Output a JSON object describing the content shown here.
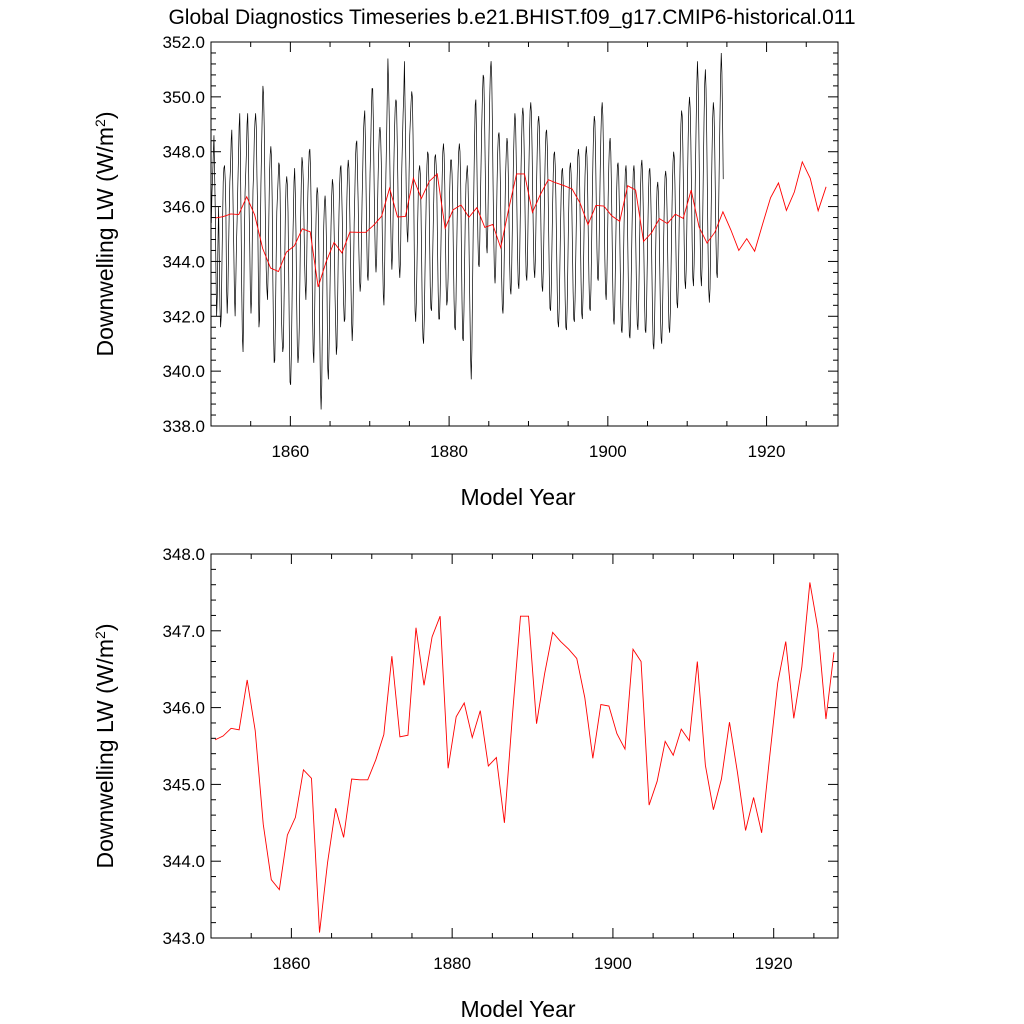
{
  "figure_title": "Global Diagnostics Timeseries b.e21.BHIST.f09_g17.CMIP6-historical.011",
  "colors": {
    "monthly_line": "#000000",
    "annual_line": "#ff0000",
    "axis": "#000000"
  },
  "chart_data": [
    {
      "type": "line",
      "title": "Global Diagnostics Timeseries b.e21.BHIST.f09_g17.CMIP6-historical.011",
      "xlabel": "Model Year",
      "ylabel": "Downwelling LW (W/m",
      "ylabel_sup": "2",
      "ylabel_close": ")",
      "xlim": [
        1850,
        1929
      ],
      "ylim": [
        338,
        352
      ],
      "xticks": [
        1860,
        1880,
        1900,
        1920
      ],
      "yticks": [
        "338.0",
        "340.0",
        "342.0",
        "344.0",
        "346.0",
        "348.0",
        "350.0",
        "352.0"
      ],
      "series": [
        {
          "kind": "monthly",
          "x_start": 1850.04,
          "x_step": 0.0833333,
          "values": [
            345.4,
            346.5,
            347.1,
            347.9,
            348.6,
            347.2,
            345.8,
            343.6,
            342.0,
            342.7,
            344.6,
            346.0,
            344.2,
            342.4,
            341.6,
            342.0,
            343.8,
            345.4,
            346.9,
            347.4,
            347.5,
            347.0,
            345.9,
            343.1,
            342.1,
            342.8,
            344.3,
            345.7,
            346.9,
            347.4,
            348.4,
            348.8,
            347.5,
            345.9,
            344.4,
            342.7,
            342.0,
            343.2,
            344.6,
            345.5,
            346.7,
            347.7,
            348.9,
            349.4,
            347.8,
            345.4,
            342.9,
            341.2,
            340.7,
            342.3,
            344.9,
            346.5,
            347.2,
            347.9,
            349.0,
            349.4,
            348.2,
            346.1,
            344.7,
            342.9,
            342.1,
            342.7,
            344.9,
            346.6,
            347.3,
            348.5,
            349.1,
            349.4,
            348.9,
            347.1,
            345.9,
            343.6,
            341.6,
            341.9,
            344.7,
            346.8,
            348.1,
            349.4,
            350.4,
            350.1,
            348.9,
            346.8,
            345.1,
            343.7,
            343.0,
            342.6,
            343.7,
            345.6,
            347.2,
            347.9,
            348.2,
            347.8,
            346.3,
            343.4,
            341.5,
            340.3,
            340.4,
            342.0,
            344.0,
            345.8,
            346.4,
            347.0,
            347.6,
            347.5,
            346.5,
            344.4,
            342.0,
            341.2,
            340.7,
            340.9,
            342.6,
            344.0,
            345.8,
            346.8,
            347.1,
            346.8,
            345.8,
            343.6,
            341.3,
            339.6,
            339.5,
            340.6,
            342.4,
            344.5,
            345.6,
            346.9,
            347.4,
            346.5,
            345.1,
            342.6,
            340.9,
            340.3,
            340.6,
            341.6,
            343.4,
            345.5,
            346.8,
            347.8,
            347.6,
            347.0,
            345.6,
            344.0,
            343.1,
            342.6,
            343.6,
            345.3,
            346.5,
            347.3,
            348.0,
            348.1,
            347.4,
            345.9,
            344.6,
            342.2,
            340.7,
            340.3,
            341.7,
            343.5,
            345.1,
            346.3,
            346.7,
            346.5,
            345.5,
            343.6,
            341.3,
            339.4,
            338.6,
            339.5,
            341.8,
            343.9,
            345.3,
            346.1,
            346.4,
            346.0,
            344.8,
            342.7,
            340.1,
            339.7,
            340.8,
            342.3,
            343.9,
            345.3,
            346.4,
            347.0,
            346.8,
            346.0,
            344.7,
            342.8,
            341.7,
            340.6,
            340.9,
            342.6,
            344.3,
            345.7,
            346.8,
            347.4,
            347.5,
            346.7,
            345.6,
            343.7,
            342.5,
            341.8,
            341.9,
            343.4,
            345.0,
            346.3,
            347.3,
            347.7,
            347.4,
            346.3,
            344.8,
            343.3,
            341.9,
            341.1,
            341.7,
            343.5,
            345.4,
            346.5,
            347.8,
            348.3,
            348.4,
            347.3,
            346.2,
            344.5,
            343.4,
            342.9,
            343.2,
            344.8,
            346.3,
            347.4,
            348.7,
            349.2,
            349.5,
            348.4,
            346.6,
            344.8,
            343.5,
            343.3,
            344.1,
            345.7,
            347.2,
            348.2,
            349.5,
            350.3,
            350.3,
            349.1,
            347.1,
            345.4,
            344.1,
            343.6,
            344.1,
            345.6,
            346.9,
            347.9,
            348.7,
            348.9,
            348.6,
            347.6,
            345.9,
            344.1,
            342.8,
            342.4,
            343.6,
            345.6,
            347.2,
            348.5,
            350.0,
            351.4,
            350.5,
            349.3,
            347.5,
            345.8,
            344.4,
            343.7,
            344.3,
            345.9,
            347.5,
            348.8,
            349.6,
            349.9,
            349.8,
            348.5,
            347.0,
            345.1,
            343.8,
            343.4,
            344.0,
            345.9,
            347.4,
            348.4,
            349.4,
            350.1,
            351.3,
            349.6,
            347.8,
            346.1,
            345.1,
            344.7,
            345.6,
            347.2,
            348.6,
            349.2,
            349.8,
            350.2,
            350.0,
            348.6,
            346.6,
            344.0,
            342.2,
            341.8,
            342.5,
            343.9,
            345.4,
            346.6,
            347.3,
            347.5,
            347.2,
            345.9,
            344.1,
            342.1,
            341.2,
            341.0,
            341.9,
            343.5,
            345.0,
            346.4,
            347.5,
            348.0,
            347.9,
            346.8,
            344.9,
            343.1,
            342.3,
            342.2,
            343.1,
            344.6,
            345.9,
            347.0,
            347.8,
            347.9,
            347.5,
            346.5,
            344.6,
            342.9,
            341.9,
            341.9,
            342.8,
            344.3,
            345.8,
            347.0,
            348.0,
            348.3,
            347.9,
            346.8,
            344.9,
            343.1,
            342.4,
            342.6,
            343.4,
            345.0,
            346.2,
            347.1,
            347.7,
            347.7,
            347.2,
            346.1,
            344.2,
            342.6,
            341.6,
            341.5,
            342.6,
            344.4,
            345.9,
            347.2,
            348.0,
            348.3,
            348.0,
            346.9,
            344.7,
            342.6,
            341.2,
            341.1,
            342.2,
            344.0,
            345.6,
            346.8,
            347.2,
            347.5,
            347.0,
            345.8,
            343.9,
            342.2,
            340.5,
            339.7,
            340.8,
            343.1,
            345.2,
            346.8,
            348.4,
            349.7,
            349.9,
            348.6,
            346.7,
            344.9,
            343.9,
            343.8,
            344.8,
            346.4,
            347.8,
            349.1,
            350.1,
            350.8,
            350.7,
            349.5,
            347.7,
            345.9,
            344.6,
            344.3,
            345.2,
            346.9,
            348.6,
            350.0,
            351.0,
            351.3,
            350.7,
            349.0,
            346.8,
            344.9,
            343.6,
            343.2,
            343.8,
            345.2,
            346.8,
            348.0,
            348.6,
            348.7,
            348.2,
            346.9,
            345.1,
            343.4,
            342.3,
            342.1,
            342.8,
            344.3,
            345.9,
            347.2,
            348.0,
            348.5,
            348.3,
            347.2,
            345.7,
            344.0,
            343.0,
            342.8,
            343.5,
            345.0,
            346.6,
            347.9,
            348.9,
            349.4,
            349.1,
            347.8,
            346.0,
            344.3,
            343.2,
            343.0,
            343.8,
            345.4,
            347.0,
            348.3,
            349.3,
            349.6,
            349.3,
            348.1,
            346.4,
            344.7,
            343.5,
            343.3,
            344.0,
            345.6,
            347.2,
            348.5,
            349.5,
            349.8,
            349.4,
            348.1,
            346.4,
            344.8,
            343.7,
            343.4,
            344.1,
            345.6,
            347.1,
            348.3,
            349.1,
            349.3,
            348.9,
            347.6,
            345.9,
            344.2,
            343.1,
            342.9,
            343.7,
            345.2,
            346.8,
            348.0,
            348.7,
            348.8,
            348.2,
            346.9,
            345.2,
            343.5,
            342.3,
            342.2,
            343.0,
            344.5,
            346.0,
            347.2,
            347.9,
            348.0,
            347.5,
            346.3,
            344.6,
            342.9,
            341.8,
            341.6,
            342.3,
            343.8,
            345.3,
            346.5,
            347.3,
            347.4,
            346.9,
            345.8,
            344.1,
            342.6,
            341.6,
            341.5,
            342.3,
            343.8,
            345.4,
            346.6,
            347.4,
            347.6,
            347.2,
            346.1,
            344.5,
            342.9,
            341.9,
            341.8,
            342.6,
            344.1,
            345.6,
            346.9,
            347.8,
            348.1,
            347.8,
            346.7,
            345.0,
            343.3,
            342.1,
            341.9,
            342.7,
            344.2,
            345.8,
            347.1,
            347.9,
            348.2,
            347.8,
            346.6,
            344.9,
            343.3,
            342.3,
            342.2,
            343.0,
            344.6,
            346.3,
            347.7,
            348.8,
            349.3,
            349.1,
            347.9,
            346.2,
            344.5,
            343.4,
            343.3,
            344.1,
            345.7,
            347.3,
            348.6,
            349.5,
            349.8,
            349.3,
            347.9,
            346.0,
            344.1,
            342.9,
            342.6,
            343.3,
            344.7,
            346.3,
            347.5,
            348.3,
            348.5,
            348.0,
            346.7,
            344.9,
            343.1,
            341.9,
            341.7,
            342.4,
            343.9,
            345.4,
            346.7,
            347.5,
            347.6,
            347.1,
            345.9,
            344.2,
            342.6,
            341.5,
            341.4,
            342.2,
            343.7,
            345.3,
            346.5,
            347.3,
            347.5,
            347.0,
            345.8,
            344.1,
            342.4,
            341.3,
            341.2,
            342.0,
            343.6,
            345.1,
            346.4,
            347.3,
            347.5,
            347.1,
            345.9,
            344.3,
            342.7,
            341.7,
            341.5,
            342.3,
            343.8,
            345.4,
            346.7,
            347.5,
            347.7,
            347.2,
            346.0,
            344.3,
            342.6,
            341.5,
            341.4,
            342.2,
            343.7,
            345.2,
            346.5,
            347.3,
            347.4,
            346.9,
            345.7,
            343.9,
            342.2,
            341.0,
            340.8,
            341.5,
            343.0,
            344.6,
            345.9,
            346.7,
            346.9,
            346.5,
            345.4,
            343.8,
            342.2,
            341.2,
            341.0,
            341.8,
            343.3,
            344.9,
            346.2,
            347.1,
            347.3,
            347.0,
            345.9,
            344.3,
            342.7,
            341.6,
            341.4,
            342.1,
            343.6,
            345.2,
            346.6,
            347.6,
            348.0,
            347.8,
            346.8,
            345.2,
            343.6,
            342.5,
            342.3,
            343.1,
            344.7,
            346.4,
            347.9,
            349.0,
            349.5,
            349.3,
            348.1,
            346.4,
            344.6,
            343.3,
            343.0,
            343.7,
            345.3,
            347.0,
            348.5,
            349.6,
            350.0,
            349.6,
            348.4,
            346.6,
            344.7,
            343.4,
            343.1,
            343.9,
            345.6,
            347.4,
            349.0,
            350.4,
            351.3,
            350.6,
            349.0,
            347.0,
            345.0,
            343.5,
            343.1,
            343.8,
            345.6,
            347.5,
            349.2,
            350.5,
            351.0,
            350.3,
            348.7,
            346.6,
            344.5,
            343.0,
            342.5,
            343.0,
            344.6,
            346.3,
            347.9,
            349.2,
            349.8,
            349.5,
            348.4,
            346.6,
            344.8,
            343.6,
            343.4,
            344.2,
            345.8,
            347.6,
            349.2,
            350.7,
            351.6,
            350.9,
            349.2,
            347.0
          ]
        },
        {
          "kind": "annual",
          "name": "",
          "x_start": 1850.5,
          "x_step": 1,
          "values": [
            345.58,
            345.63,
            345.73,
            345.71,
            346.36,
            345.7,
            344.48,
            343.76,
            343.63,
            344.34,
            344.57,
            345.19,
            345.08,
            343.07,
            343.98,
            344.69,
            344.31,
            345.07,
            345.06,
            345.06,
            345.32,
            345.65,
            346.67,
            345.62,
            345.64,
            347.04,
            346.29,
            346.92,
            347.19,
            345.21,
            345.88,
            346.06,
            345.61,
            345.96,
            345.24,
            345.35,
            344.5,
            345.9,
            347.19,
            347.19,
            345.79,
            346.44,
            346.98,
            346.86,
            346.76,
            346.64,
            346.13,
            345.34,
            346.04,
            346.02,
            345.66,
            345.46,
            346.76,
            346.6,
            344.73,
            345.04,
            345.56,
            345.38,
            345.72,
            345.57,
            346.6,
            345.25,
            344.67,
            345.07,
            345.81,
            345.15,
            344.4,
            344.83,
            344.37,
            345.36,
            346.32,
            346.86,
            345.86,
            346.53,
            347.63,
            347.03,
            345.85,
            346.72
          ]
        }
      ]
    },
    {
      "type": "line",
      "xlabel": "Model Year",
      "ylabel": "Downwelling LW (W/m",
      "ylabel_sup": "2",
      "ylabel_close": ")",
      "xlim": [
        1850,
        1928
      ],
      "ylim": [
        343,
        348
      ],
      "xticks": [
        1860,
        1880,
        1900,
        1920
      ],
      "yticks": [
        "343.0",
        "344.0",
        "345.0",
        "346.0",
        "347.0",
        "348.0"
      ],
      "series": [
        {
          "kind": "annual",
          "name": "",
          "x_start": 1850.5,
          "x_step": 1,
          "values": [
            345.58,
            345.63,
            345.73,
            345.71,
            346.36,
            345.7,
            344.48,
            343.76,
            343.63,
            344.34,
            344.57,
            345.19,
            345.08,
            343.07,
            343.98,
            344.69,
            344.31,
            345.07,
            345.06,
            345.06,
            345.32,
            345.65,
            346.67,
            345.62,
            345.64,
            347.04,
            346.29,
            346.92,
            347.19,
            345.21,
            345.88,
            346.06,
            345.61,
            345.96,
            345.24,
            345.35,
            344.5,
            345.9,
            347.19,
            347.19,
            345.79,
            346.44,
            346.98,
            346.86,
            346.76,
            346.64,
            346.13,
            345.34,
            346.04,
            346.02,
            345.66,
            345.46,
            346.76,
            346.6,
            344.73,
            345.04,
            345.56,
            345.38,
            345.72,
            345.57,
            346.6,
            345.25,
            344.67,
            345.07,
            345.81,
            345.15,
            344.4,
            344.83,
            344.37,
            345.36,
            346.32,
            346.86,
            345.86,
            346.53,
            347.63,
            347.03,
            345.85,
            346.72
          ]
        }
      ]
    }
  ]
}
